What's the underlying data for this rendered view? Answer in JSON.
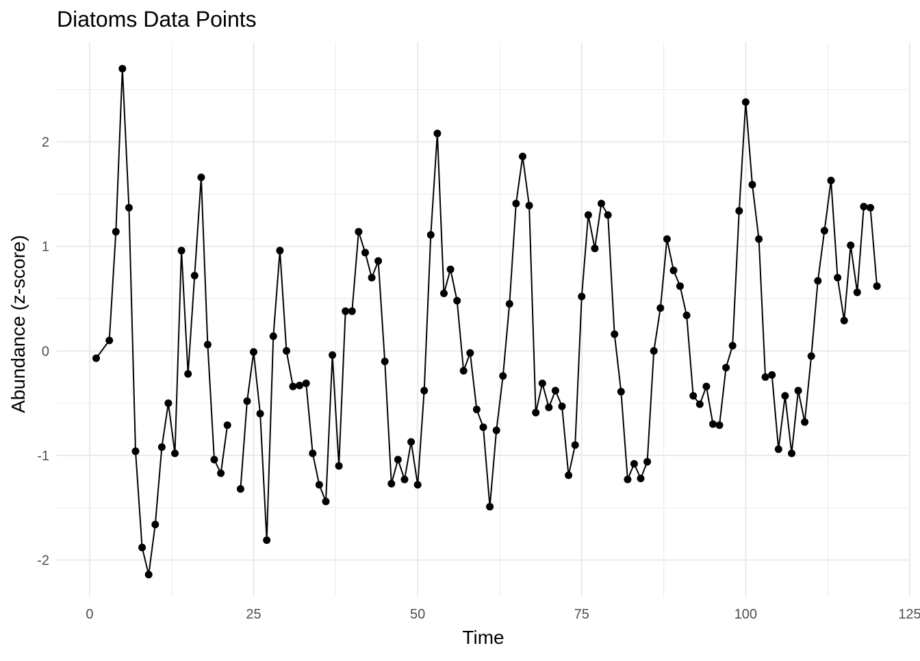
{
  "chart_data": {
    "type": "line",
    "title": "Diatoms Data Points",
    "xlabel": "Time",
    "ylabel": "Abundance (z-score)",
    "xlim": [
      -5,
      125
    ],
    "ylim": [
      -2.35,
      2.95
    ],
    "x_ticks": [
      0,
      25,
      50,
      75,
      100,
      125
    ],
    "y_ticks": [
      -2,
      -1,
      0,
      1,
      2
    ],
    "x_minor": [
      12.5,
      37.5,
      62.5,
      87.5,
      112.5
    ],
    "y_minor": [
      -1.5,
      -0.5,
      0.5,
      1.5,
      2.5
    ],
    "grid": true,
    "legend": "none",
    "colors": {
      "line": "#000000",
      "point": "#000000"
    },
    "series": [
      {
        "points": [
          [
            1,
            -0.07
          ],
          [
            3,
            0.1
          ],
          [
            4,
            1.14
          ],
          [
            5,
            2.7
          ],
          [
            6,
            1.37
          ],
          [
            7,
            -0.96
          ],
          [
            8,
            -1.88
          ],
          [
            9,
            -2.14
          ],
          [
            10,
            -1.66
          ],
          [
            11,
            -0.92
          ],
          [
            12,
            -0.5
          ],
          [
            13,
            -0.98
          ],
          [
            14,
            0.96
          ],
          [
            15,
            -0.22
          ],
          [
            16,
            0.72
          ],
          [
            17,
            1.66
          ],
          [
            18,
            0.06
          ],
          [
            19,
            -1.04
          ],
          [
            20,
            -1.17
          ],
          [
            21,
            -0.71
          ],
          [
            23,
            -1.32
          ],
          [
            24,
            -0.48
          ],
          [
            25,
            -0.01
          ],
          [
            26,
            -0.6
          ],
          [
            27,
            -1.81
          ],
          [
            28,
            0.14
          ],
          [
            29,
            0.96
          ],
          [
            30,
            0.0
          ],
          [
            31,
            -0.34
          ],
          [
            32,
            -0.33
          ],
          [
            33,
            -0.31
          ],
          [
            34,
            -0.98
          ],
          [
            35,
            -1.28
          ],
          [
            36,
            -1.44
          ],
          [
            37,
            -0.04
          ],
          [
            38,
            -1.1
          ],
          [
            39,
            0.38
          ],
          [
            40,
            0.38
          ],
          [
            41,
            1.14
          ],
          [
            42,
            0.94
          ],
          [
            43,
            0.7
          ],
          [
            44,
            0.86
          ],
          [
            45,
            -0.1
          ],
          [
            46,
            -1.27
          ],
          [
            47,
            -1.04
          ],
          [
            48,
            -1.23
          ],
          [
            49,
            -0.87
          ],
          [
            50,
            -1.28
          ],
          [
            51,
            -0.38
          ],
          [
            52,
            1.11
          ],
          [
            53,
            2.08
          ],
          [
            54,
            0.55
          ],
          [
            55,
            0.78
          ],
          [
            56,
            0.48
          ],
          [
            57,
            -0.19
          ],
          [
            58,
            -0.02
          ],
          [
            59,
            -0.56
          ],
          [
            60,
            -0.73
          ],
          [
            61,
            -1.49
          ],
          [
            62,
            -0.76
          ],
          [
            63,
            -0.24
          ],
          [
            64,
            0.45
          ],
          [
            65,
            1.41
          ],
          [
            66,
            1.86
          ],
          [
            67,
            1.39
          ],
          [
            68,
            -0.59
          ],
          [
            69,
            -0.31
          ],
          [
            70,
            -0.54
          ],
          [
            71,
            -0.38
          ],
          [
            72,
            -0.53
          ],
          [
            73,
            -1.19
          ],
          [
            74,
            -0.9
          ],
          [
            75,
            0.52
          ],
          [
            76,
            1.3
          ],
          [
            77,
            0.98
          ],
          [
            78,
            1.41
          ],
          [
            79,
            1.3
          ],
          [
            80,
            0.16
          ],
          [
            81,
            -0.39
          ],
          [
            82,
            -1.23
          ],
          [
            83,
            -1.08
          ],
          [
            84,
            -1.22
          ],
          [
            85,
            -1.06
          ],
          [
            86,
            0.0
          ],
          [
            87,
            0.41
          ],
          [
            88,
            1.07
          ],
          [
            89,
            0.77
          ],
          [
            90,
            0.62
          ],
          [
            91,
            0.34
          ],
          [
            92,
            -0.43
          ],
          [
            93,
            -0.51
          ],
          [
            94,
            -0.34
          ],
          [
            95,
            -0.7
          ],
          [
            96,
            -0.71
          ],
          [
            97,
            -0.16
          ],
          [
            98,
            0.05
          ],
          [
            99,
            1.34
          ],
          [
            100,
            2.38
          ],
          [
            101,
            1.59
          ],
          [
            102,
            1.07
          ],
          [
            103,
            -0.25
          ],
          [
            104,
            -0.23
          ],
          [
            105,
            -0.94
          ],
          [
            106,
            -0.43
          ],
          [
            107,
            -0.98
          ],
          [
            108,
            -0.38
          ],
          [
            109,
            -0.68
          ],
          [
            110,
            -0.05
          ],
          [
            111,
            0.67
          ],
          [
            112,
            1.15
          ],
          [
            113,
            1.63
          ],
          [
            114,
            0.7
          ],
          [
            115,
            0.29
          ],
          [
            116,
            1.01
          ],
          [
            117,
            0.56
          ],
          [
            118,
            1.38
          ],
          [
            119,
            1.37
          ],
          [
            120,
            0.62
          ]
        ],
        "line_segments": [
          [
            1,
            21
          ],
          [
            23,
            120
          ]
        ]
      }
    ]
  }
}
